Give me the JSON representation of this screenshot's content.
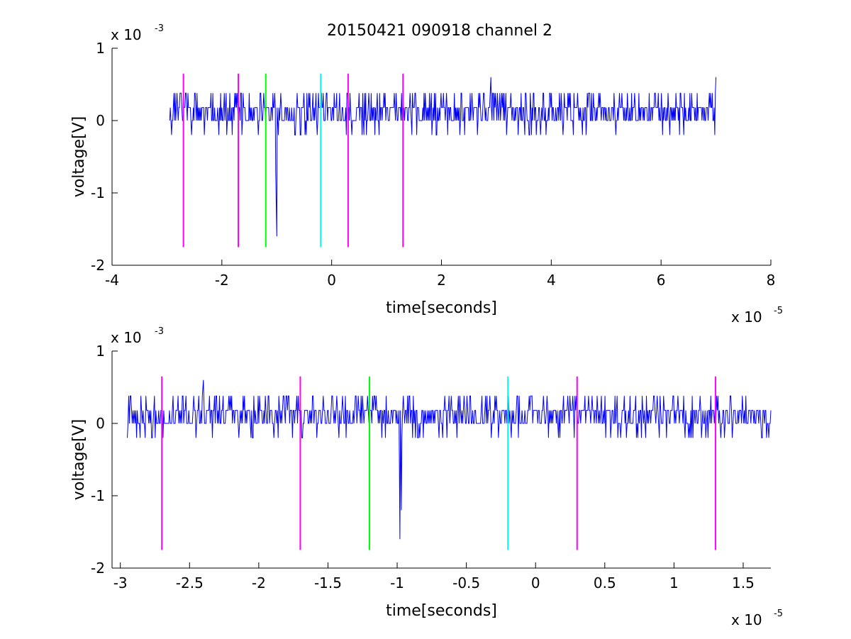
{
  "figure": {
    "title": "20150421 090918 channel 2"
  },
  "chart_data": [
    {
      "type": "line",
      "title": "20150421 090918 channel 2",
      "xlabel": "time[seconds]",
      "ylabel": "voltage[V]",
      "x_multiplier_label": "x 10",
      "x_multiplier_exp": "-5",
      "y_multiplier_label": "x 10",
      "y_multiplier_exp": "-3",
      "xlim": [
        -4,
        8
      ],
      "ylim": [
        -2,
        1
      ],
      "xticks": [
        -4,
        -2,
        0,
        2,
        4,
        6,
        8
      ],
      "xtick_labels": [
        "-4",
        "-2",
        "0",
        "2",
        "4",
        "6",
        "8"
      ],
      "yticks": [
        -2,
        -1,
        0,
        1
      ],
      "ytick_labels": [
        "-2",
        "-1",
        "0",
        "1"
      ],
      "grid": false,
      "series": [
        {
          "color": "#0000ff",
          "x_range": [
            -2.95,
            7.0
          ],
          "baseline_levels": [
            0,
            0.18,
            0.38,
            -0.2
          ],
          "spikes": [
            {
              "x": -1.0,
              "y": -1.6
            },
            {
              "x": -1.02,
              "y": -0.7
            },
            {
              "x": 2.9,
              "y": 0.6
            },
            {
              "x": 7.0,
              "y": 0.6
            }
          ]
        }
      ],
      "markers": [
        {
          "x": -2.7,
          "y_range": [
            -1.75,
            0.65
          ],
          "color": "#ff00ff"
        },
        {
          "x": -1.7,
          "y_range": [
            -1.75,
            0.65
          ],
          "color": "#ff00ff"
        },
        {
          "x": -1.2,
          "y_range": [
            -1.75,
            0.65
          ],
          "color": "#00ff00"
        },
        {
          "x": -0.2,
          "y_range": [
            -1.75,
            0.65
          ],
          "color": "#00ffff"
        },
        {
          "x": 0.3,
          "y_range": [
            -1.75,
            0.65
          ],
          "color": "#ff00ff"
        },
        {
          "x": 1.3,
          "y_range": [
            -1.75,
            0.65
          ],
          "color": "#ff00ff"
        }
      ]
    },
    {
      "type": "line",
      "title": "",
      "xlabel": "time[seconds]",
      "ylabel": "voltage[V]",
      "x_multiplier_label": "x 10",
      "x_multiplier_exp": "-5",
      "y_multiplier_label": "x 10",
      "y_multiplier_exp": "-3",
      "xlim": [
        -3.06,
        1.7
      ],
      "ylim": [
        -2,
        1
      ],
      "xticks": [
        -3,
        -2.5,
        -2,
        -1.5,
        -1,
        -0.5,
        0,
        0.5,
        1,
        1.5
      ],
      "xtick_labels": [
        "-3",
        "-2.5",
        "-2",
        "-1.5",
        "-1",
        "-0.5",
        "0",
        "0.5",
        "1",
        "1.5"
      ],
      "yticks": [
        -2,
        -1,
        0,
        1
      ],
      "ytick_labels": [
        "-2",
        "-1",
        "0",
        "1"
      ],
      "grid": false,
      "series": [
        {
          "color": "#0000ff",
          "x_range": [
            -2.95,
            1.7
          ],
          "baseline_levels": [
            0,
            0.18,
            0.38,
            -0.2
          ],
          "spikes": [
            {
              "x": -0.98,
              "y": -1.6
            },
            {
              "x": -0.97,
              "y": -1.2
            },
            {
              "x": -2.4,
              "y": 0.6
            }
          ]
        }
      ],
      "markers": [
        {
          "x": -2.7,
          "y_range": [
            -1.75,
            0.65
          ],
          "color": "#ff00ff"
        },
        {
          "x": -1.7,
          "y_range": [
            -1.75,
            0.65
          ],
          "color": "#ff00ff"
        },
        {
          "x": -1.2,
          "y_range": [
            -1.75,
            0.65
          ],
          "color": "#00ff00"
        },
        {
          "x": -0.2,
          "y_range": [
            -1.75,
            0.65
          ],
          "color": "#00ffff"
        },
        {
          "x": 0.3,
          "y_range": [
            -1.75,
            0.65
          ],
          "color": "#ff00ff"
        },
        {
          "x": 1.3,
          "y_range": [
            -1.75,
            0.65
          ],
          "color": "#ff00ff"
        }
      ]
    }
  ]
}
